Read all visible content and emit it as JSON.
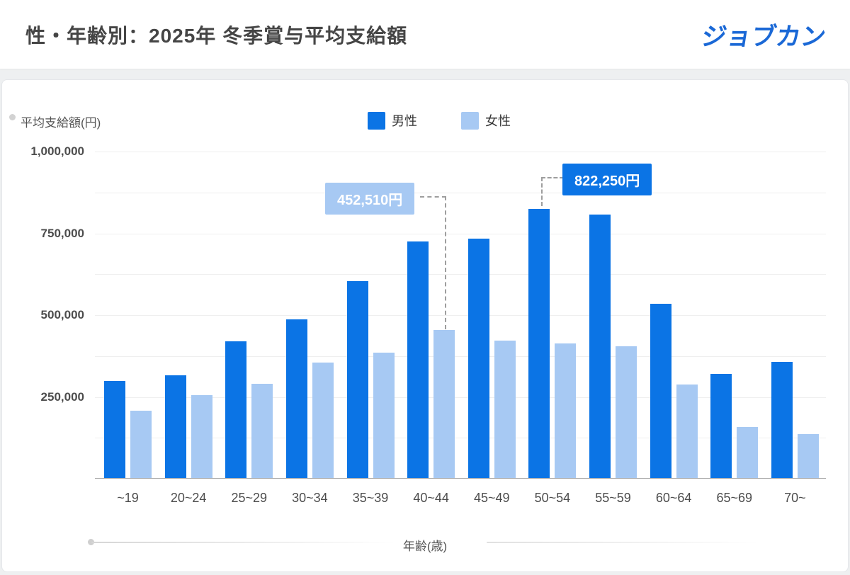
{
  "header": {
    "title": "性・年齢別：2025年 冬季賞与平均支給額",
    "logo_text": "ジョブカン"
  },
  "colors": {
    "male": "#0b74e5",
    "female": "#a7c9f3",
    "logo_blue": "#1a68d6",
    "grid": "#efefef",
    "axis_line": "#a8a8a8",
    "text_gray": "#4d4d4d"
  },
  "chart_data": {
    "type": "bar",
    "title": "性・年齢別：2025年 冬季賞与平均支給額",
    "ylabel": "平均支給額(円)",
    "xlabel": "年齢(歳)",
    "ylim": [
      0,
      1000000
    ],
    "yticks": [
      250000,
      500000,
      750000,
      1000000
    ],
    "gridline_step": 125000,
    "grid": true,
    "legend_position": "top-center",
    "categories": [
      "~19",
      "20~24",
      "25~29",
      "30~34",
      "35~39",
      "40~44",
      "45~49",
      "50~54",
      "55~59",
      "60~64",
      "65~69",
      "70~"
    ],
    "series": [
      {
        "name": "男性",
        "color": "#0b74e5",
        "values": [
          296000,
          314000,
          417000,
          485000,
          602000,
          722000,
          731000,
          822250,
          805000,
          533000,
          318000,
          356000
        ]
      },
      {
        "name": "女性",
        "color": "#a7c9f3",
        "values": [
          206000,
          254000,
          288000,
          354000,
          384000,
          452510,
          421000,
          411000,
          403000,
          285000,
          156000,
          134000
        ]
      }
    ],
    "annotations": [
      {
        "series": "女性",
        "category": "40~44",
        "value": 452510,
        "label": "452,510円"
      },
      {
        "series": "男性",
        "category": "50~54",
        "value": 822250,
        "label": "822,250円"
      }
    ]
  }
}
